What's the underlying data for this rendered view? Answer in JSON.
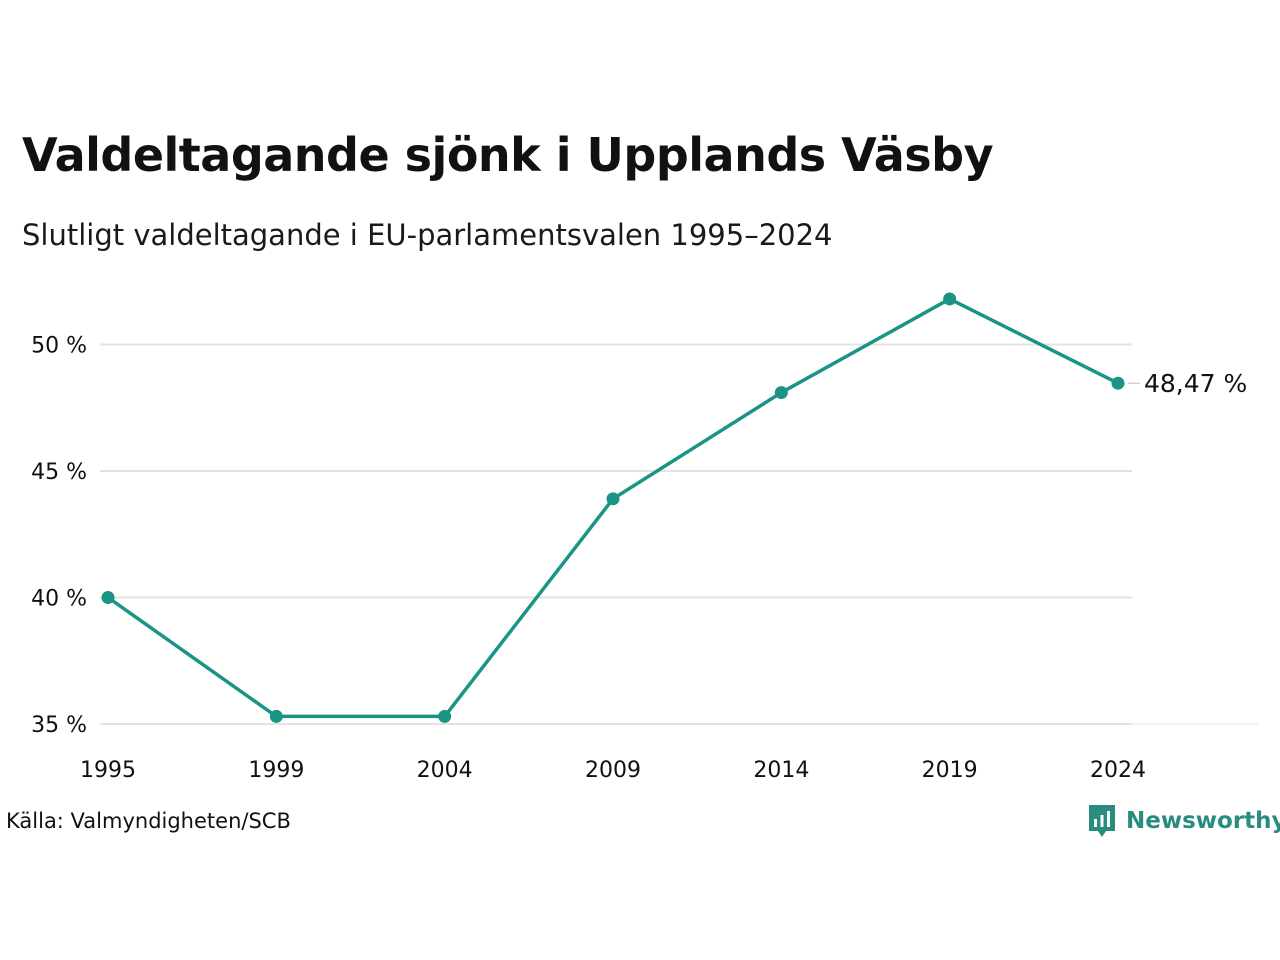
{
  "title": "Valdeltagande sjönk i Upplands Väsby",
  "subtitle": "Slutligt valdeltagande i EU-parlamentsvalen 1995–2024",
  "source": "Källa: Valmyndigheten/SCB",
  "brand": {
    "name": "Newsworthy",
    "icon": "newsworthy-logo-icon",
    "color": "#2a8c7e"
  },
  "chart_data": {
    "type": "line",
    "categories": [
      "1995",
      "1999",
      "2004",
      "2009",
      "2014",
      "2019",
      "2024"
    ],
    "series": [
      {
        "values": [
          40.0,
          35.3,
          35.3,
          43.9,
          48.1,
          51.8,
          48.47
        ],
        "color": "#1a9484"
      }
    ],
    "yticks": [
      35,
      40,
      45,
      50
    ],
    "ytick_labels": [
      "35 %",
      "40 %",
      "45 %",
      "50 %"
    ],
    "ylim": [
      35,
      52
    ],
    "grid": true,
    "end_label": "48,47 %",
    "xlabel": "",
    "ylabel": ""
  }
}
